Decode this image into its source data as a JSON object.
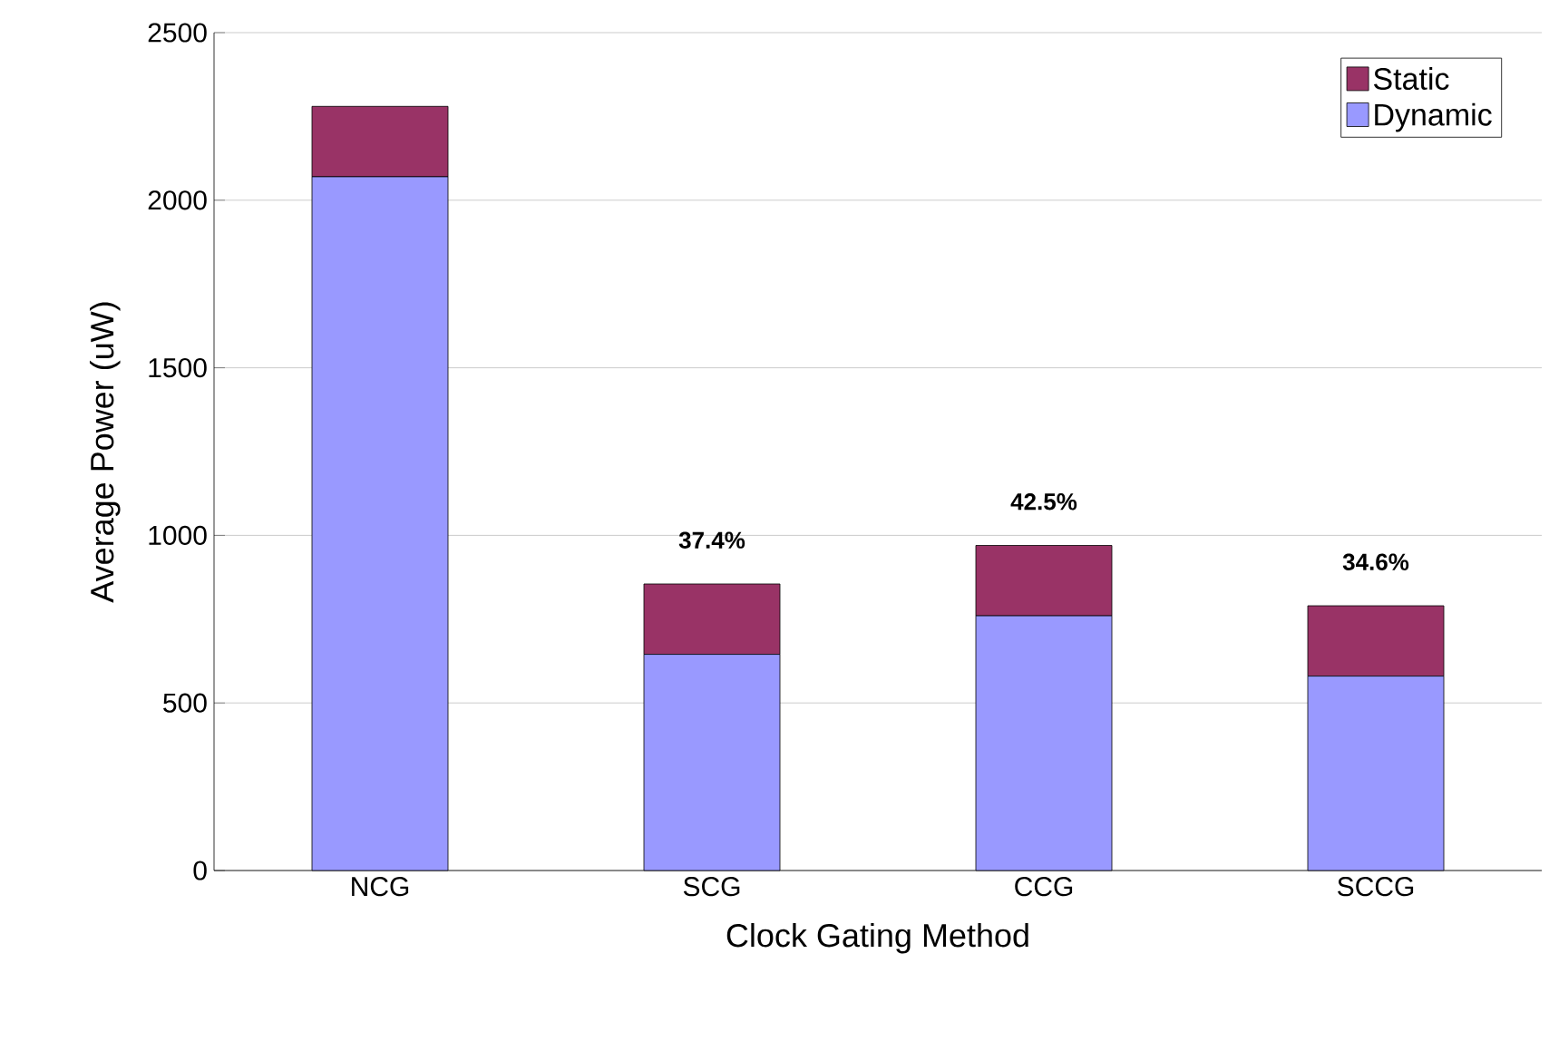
{
  "chart_data": {
    "type": "bar",
    "stacked": true,
    "xlabel": "Clock Gating Method",
    "ylabel": "Average Power (uW)",
    "categories": [
      "NCG",
      "SCG",
      "CCG",
      "SCCG"
    ],
    "series": [
      {
        "name": "Dynamic",
        "color": "#9999ff",
        "values": [
          2070,
          645,
          760,
          580
        ]
      },
      {
        "name": "Static",
        "color": "#993366",
        "values": [
          210,
          210,
          210,
          210
        ]
      }
    ],
    "ylim": [
      0,
      2500
    ],
    "yticks": [
      0,
      500,
      1000,
      1500,
      2000,
      2500
    ],
    "grid": "y",
    "legend": "top right",
    "annotations": [
      "37.4%",
      "42.5%",
      "34.6%"
    ]
  }
}
